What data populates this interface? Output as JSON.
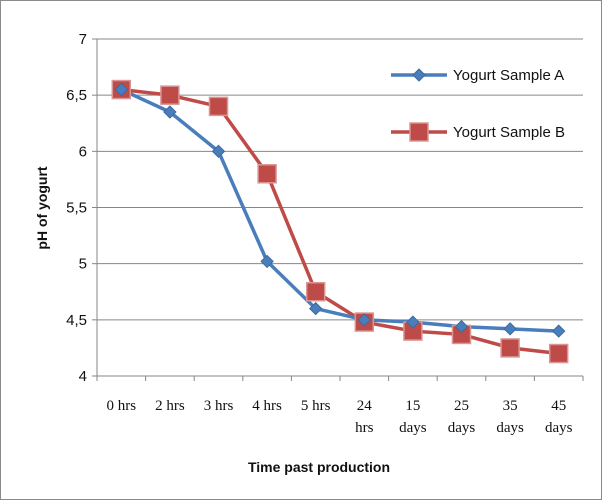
{
  "chart_data": {
    "type": "line",
    "title": "",
    "xlabel": "Time past production",
    "ylabel": "pH of yogurt",
    "ylim": [
      4,
      7
    ],
    "yticks": [
      "7",
      "6,5",
      "6",
      "5,5",
      "5",
      "4,5",
      "4"
    ],
    "categories": [
      [
        "0 hrs"
      ],
      [
        "2 hrs"
      ],
      [
        "3 hrs"
      ],
      [
        "4 hrs"
      ],
      [
        "5 hrs"
      ],
      [
        "24",
        "hrs"
      ],
      [
        "15",
        "days"
      ],
      [
        "25",
        "days"
      ],
      [
        "35",
        "days"
      ],
      [
        "45",
        "days"
      ]
    ],
    "grid": "horizontal",
    "legend": "right",
    "series": [
      {
        "name": "Yogurt Sample A",
        "color": "#4a7ebb",
        "marker": "diamond",
        "values": [
          6.55,
          6.35,
          6.0,
          5.02,
          4.6,
          4.5,
          4.48,
          4.44,
          4.42,
          4.4
        ]
      },
      {
        "name": "Yogurt Sample B",
        "color": "#be4b48",
        "marker": "square",
        "values": [
          6.55,
          6.5,
          6.4,
          5.8,
          4.75,
          4.48,
          4.4,
          4.37,
          4.25,
          4.2
        ]
      }
    ]
  }
}
